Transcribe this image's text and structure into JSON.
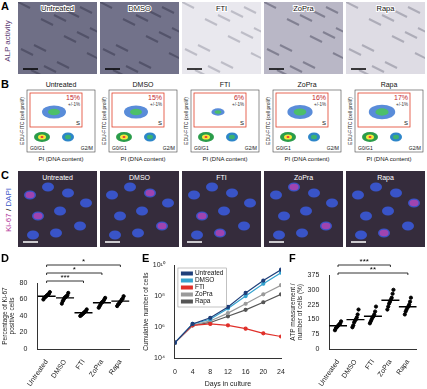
{
  "panels": [
    {
      "label": "A",
      "y_label": "ALP activity",
      "conditions": [
        "Untreated",
        "DMSO",
        "FTI",
        "ZoPra",
        "Rapa"
      ]
    },
    {
      "label": "B",
      "y_label": "EDU-FITC (cell prolif)",
      "x_label": "PI (DNA content)",
      "gates": [
        "G0/G1",
        "S",
        "G2/M"
      ],
      "conditions": [
        "Untreated",
        "DMSO",
        "FTI",
        "ZoPra",
        "Rapa"
      ],
      "s_phase_percent": [
        15,
        15,
        6,
        16,
        17
      ],
      "s_phase_labels": [
        "15%",
        "15%",
        "6%",
        "16%",
        "17%"
      ],
      "s_phase_errors": [
        "+/-1%",
        "+/-1%",
        "+/-1%",
        "+/-1%",
        "+/-1%"
      ]
    },
    {
      "label": "C",
      "stain_labels": [
        "Ki-67",
        "DAPI"
      ],
      "separator": "/",
      "conditions": [
        "Untreated",
        "DMSO",
        "FTI",
        "ZoPra",
        "Rapa"
      ]
    }
  ],
  "chart_data": [
    {
      "panel": "D",
      "type": "scatter",
      "categories": [
        "Untreated",
        "DMSO",
        "FTI",
        "ZoPra",
        "Rapa"
      ],
      "y_label": [
        "Percentage of Ki-67",
        "positive cells"
      ],
      "values": [
        [
          60,
          62,
          63,
          64,
          65,
          66,
          67,
          69
        ],
        [
          55,
          58,
          60,
          62,
          63,
          64,
          65,
          68
        ],
        [
          40,
          41,
          42,
          43,
          44,
          45,
          46,
          48
        ],
        [
          50,
          52,
          54,
          56,
          57,
          58,
          60,
          62
        ],
        [
          52,
          54,
          55,
          57,
          58,
          60,
          61,
          64
        ]
      ],
      "means": [
        64,
        62,
        44,
        56,
        58
      ],
      "color": "#000000",
      "marker": "circle",
      "ylim": [
        0,
        80
      ],
      "yticks": [
        0,
        20,
        40,
        60,
        80
      ],
      "grid": false,
      "annotations": [
        {
          "from": "Untreated",
          "to": "FTI",
          "text": "***"
        },
        {
          "from": "Untreated",
          "to": "ZoPra",
          "text": "*"
        },
        {
          "from": "Untreated",
          "to": "Rapa",
          "text": "*"
        }
      ]
    },
    {
      "panel": "E",
      "type": "line",
      "x_label": "Days in culture",
      "y_label": "Cumulative number of cells",
      "x": [
        0,
        4,
        8,
        12,
        16,
        20,
        24
      ],
      "xlim": [
        0,
        24
      ],
      "xticks": [
        0,
        4,
        8,
        12,
        16,
        20,
        24
      ],
      "log": "y",
      "ylim": [
        10000,
        10000000000
      ],
      "yticks": [
        {
          "value": 10000,
          "label": "10⁴"
        },
        {
          "value": 1000000,
          "label": "10⁶"
        },
        {
          "value": 100000000,
          "label": "10⁸"
        },
        {
          "value": 10000000000,
          "label": "10¹⁰"
        }
      ],
      "grid": false,
      "legend": "top-left",
      "marker": "circle",
      "series": [
        {
          "name": "Untreated",
          "color": "#1f3f7a",
          "values": [
            100000,
            1600000,
            4000000,
            20000000,
            160000000,
            1000000000,
            5000000000
          ]
        },
        {
          "name": "DMSO",
          "color": "#35a3cf",
          "values": [
            100000,
            1600000,
            3200000,
            16000000,
            100000000,
            630000000,
            3200000000
          ]
        },
        {
          "name": "FTI",
          "color": "#e0302a",
          "values": [
            100000,
            1300000,
            1600000,
            1300000,
            800000,
            400000,
            250000
          ]
        },
        {
          "name": "ZoPra",
          "color": "#9a9a9a",
          "values": [
            100000,
            1300000,
            2500000,
            8000000,
            32000000,
            130000000,
            500000000
          ]
        },
        {
          "name": "Rapa",
          "color": "#555555",
          "values": [
            100000,
            1300000,
            2000000,
            5000000,
            13000000,
            40000000,
            130000000
          ]
        }
      ]
    },
    {
      "panel": "F",
      "type": "scatter",
      "categories": [
        "Untreated",
        "DMSO",
        "FTI",
        "ZoPra",
        "Rapa"
      ],
      "y_label": [
        "ATP measurement /",
        "number of cells (%)"
      ],
      "values": [
        [
          95,
          105,
          110,
          115,
          120,
          125,
          130,
          140
        ],
        [
          110,
          120,
          135,
          145,
          150,
          160,
          175,
          200
        ],
        [
          130,
          140,
          150,
          160,
          165,
          175,
          190,
          215
        ],
        [
          200,
          215,
          230,
          240,
          250,
          260,
          280,
          300
        ],
        [
          175,
          190,
          200,
          210,
          215,
          225,
          240,
          260
        ]
      ],
      "means": [
        118,
        149,
        166,
        247,
        214
      ],
      "color": "#000000",
      "marker": "circle",
      "ylim": [
        0,
        375
      ],
      "yticks": [
        0,
        75,
        150,
        225,
        300,
        375
      ],
      "grid": false,
      "annotations": [
        {
          "from": "Untreated",
          "to": "Rapa",
          "text": "**"
        },
        {
          "from": "Untreated",
          "to": "ZoPra",
          "text": "***"
        }
      ]
    }
  ]
}
